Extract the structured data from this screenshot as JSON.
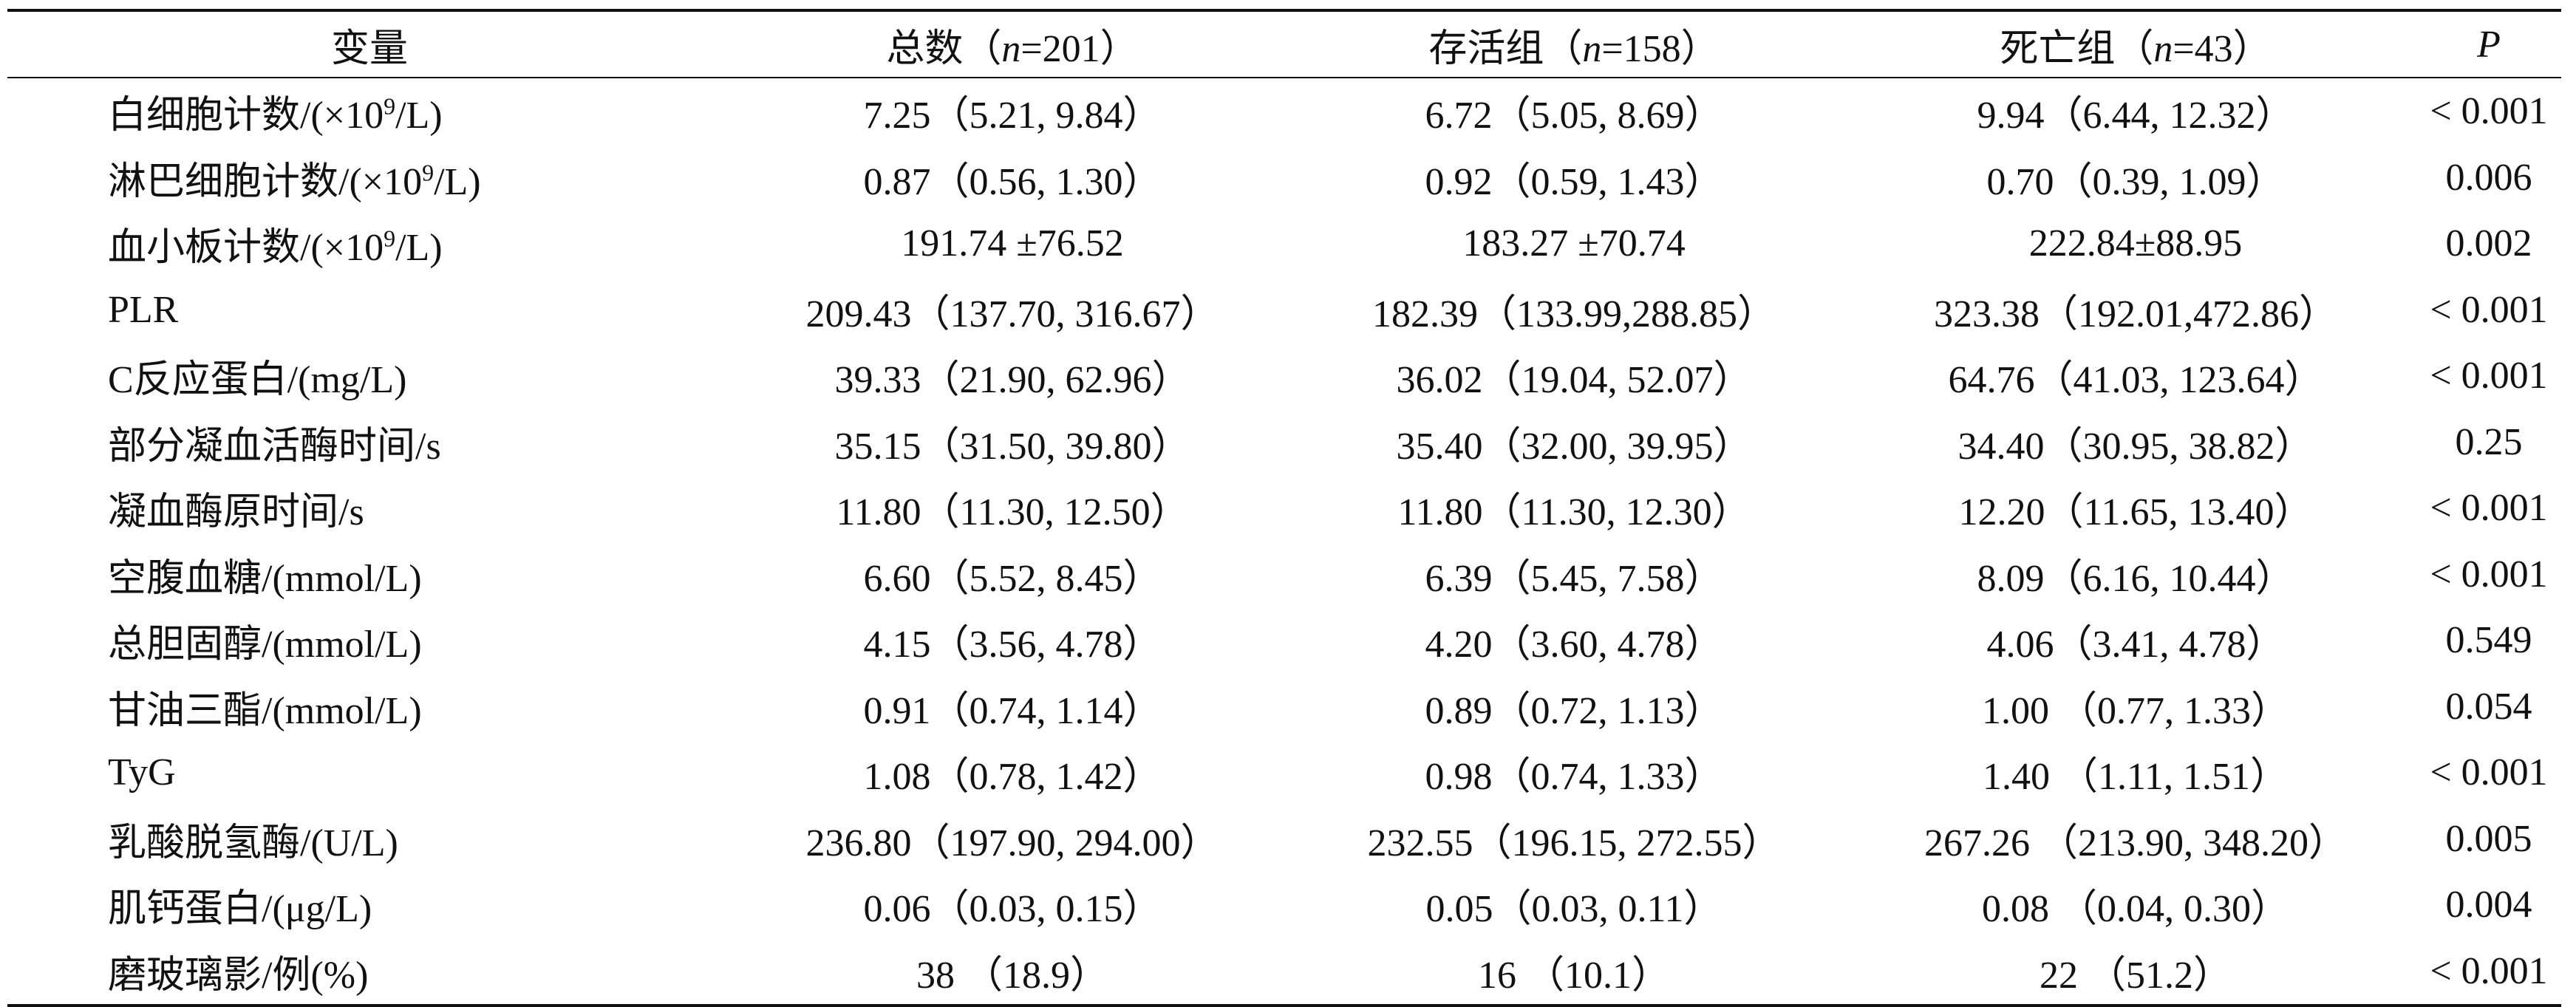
{
  "table": {
    "headers": {
      "variable": "变量",
      "total_prefix": "总数（",
      "total_n": "n",
      "total_suffix": "=201）",
      "survival_prefix": "存活组（",
      "survival_n": "n",
      "survival_suffix": "=158）",
      "death_prefix": "死亡组（",
      "death_n": "n",
      "death_suffix": "=43）",
      "p": "P"
    },
    "rows": [
      {
        "pre": "白细胞计数/(×10",
        "sup": "9",
        "post": "/L)",
        "total": "7.25（5.21, 9.84）",
        "survival": "6.72（5.05, 8.69）",
        "death": "9.94（6.44, 12.32）",
        "p": "< 0.001"
      },
      {
        "pre": "淋巴细胞计数/(×10",
        "sup": "9",
        "post": "/L)",
        "total": "0.87（0.56, 1.30）",
        "survival": "0.92（0.59, 1.43）",
        "death": "0.70（0.39, 1.09）",
        "p": "0.006"
      },
      {
        "pre": "血小板计数/(×10",
        "sup": "9",
        "post": "/L)",
        "total": "191.74 ±76.52",
        "survival": "183.27 ±70.74",
        "death": "222.84±88.95",
        "p": "0.002"
      },
      {
        "pre": "PLR",
        "sup": "",
        "post": "",
        "total": "209.43（137.70, 316.67）",
        "survival": "182.39（133.99,288.85）",
        "death": "323.38（192.01,472.86）",
        "p": "< 0.001"
      },
      {
        "pre": "C反应蛋白/(mg/L)",
        "sup": "",
        "post": "",
        "total": "39.33（21.90, 62.96）",
        "survival": "36.02（19.04, 52.07）",
        "death": "64.76（41.03, 123.64）",
        "p": "< 0.001"
      },
      {
        "pre": "部分凝血活酶时间/s",
        "sup": "",
        "post": "",
        "total": "35.15（31.50, 39.80）",
        "survival": "35.40（32.00, 39.95）",
        "death": "34.40（30.95, 38.82）",
        "p": "0.25"
      },
      {
        "pre": "凝血酶原时间/s",
        "sup": "",
        "post": "",
        "total": "11.80（11.30, 12.50）",
        "survival": "11.80（11.30, 12.30）",
        "death": "12.20（11.65, 13.40）",
        "p": "< 0.001"
      },
      {
        "pre": "空腹血糖/(mmol/L)",
        "sup": "",
        "post": "",
        "total": "6.60（5.52, 8.45）",
        "survival": "6.39（5.45, 7.58）",
        "death": "8.09（6.16, 10.44）",
        "p": "< 0.001"
      },
      {
        "pre": "总胆固醇/(mmol/L)",
        "sup": "",
        "post": "",
        "total": "4.15（3.56, 4.78）",
        "survival": "4.20（3.60, 4.78）",
        "death": "4.06（3.41, 4.78）",
        "p": "0.549"
      },
      {
        "pre": "甘油三酯/(mmol/L)",
        "sup": "",
        "post": "",
        "total": "0.91（0.74, 1.14）",
        "survival": "0.89（0.72, 1.13）",
        "death": "1.00 （0.77, 1.33）",
        "p": "0.054"
      },
      {
        "pre": "TyG",
        "sup": "",
        "post": "",
        "total": "1.08（0.78, 1.42）",
        "survival": "0.98（0.74, 1.33）",
        "death": "1.40 （1.11, 1.51）",
        "p": "< 0.001"
      },
      {
        "pre": "乳酸脱氢酶/(U/L)",
        "sup": "",
        "post": "",
        "total": "236.80（197.90, 294.00）",
        "survival": "232.55（196.15, 272.55）",
        "death": "267.26 （213.90, 348.20）",
        "p": "0.005"
      },
      {
        "pre": "肌钙蛋白/(μg/L)",
        "sup": "",
        "post": "",
        "total": "0.06（0.03, 0.15）",
        "survival": "0.05（0.03, 0.11）",
        "death": "0.08 （0.04, 0.30）",
        "p": "0.004"
      },
      {
        "pre": "磨玻璃影/例(%)",
        "sup": "",
        "post": "",
        "total": "38 （18.9）",
        "survival": "16 （10.1）",
        "death": "22 （51.2）",
        "p": "< 0.001"
      }
    ]
  }
}
